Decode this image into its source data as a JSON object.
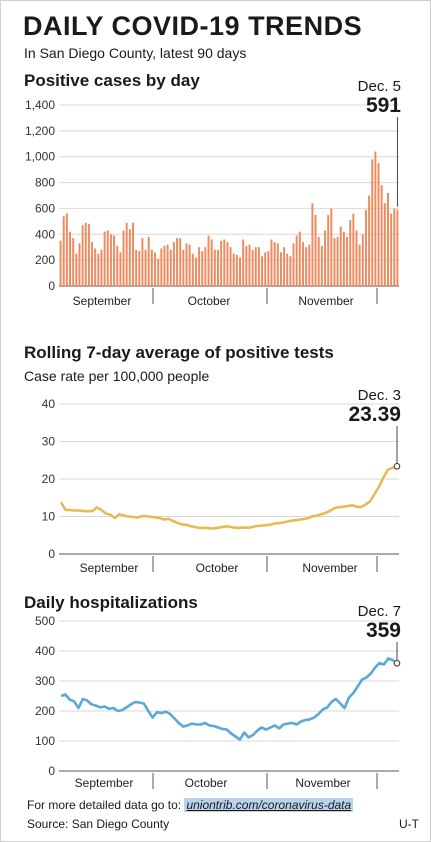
{
  "header": {
    "title": "DAILY COVID-19 TRENDS",
    "subtitle": "In San Diego County, latest 90 days"
  },
  "footer": {
    "more_text": "For more detailed data go to: ",
    "link": "uniontrib.com/coronavirus-data",
    "source": "Source: San Diego County",
    "credit": "U-T"
  },
  "chart_data": [
    {
      "type": "bar",
      "title": "Positive cases by day",
      "ylim": [
        0,
        1400
      ],
      "yticks": [
        "0",
        "200",
        "400",
        "600",
        "800",
        "1,000",
        "1,200",
        "1,400"
      ],
      "months": [
        "September",
        "October",
        "November"
      ],
      "color": "#f08a5d",
      "annotation": {
        "date": "Dec. 5",
        "value": "591"
      },
      "values": [
        350,
        540,
        560,
        420,
        370,
        250,
        330,
        470,
        490,
        480,
        340,
        290,
        250,
        280,
        420,
        430,
        400,
        390,
        310,
        260,
        430,
        490,
        440,
        490,
        280,
        270,
        370,
        280,
        380,
        280,
        260,
        210,
        290,
        310,
        320,
        280,
        340,
        370,
        370,
        280,
        330,
        320,
        250,
        220,
        300,
        270,
        300,
        390,
        360,
        280,
        280,
        350,
        360,
        340,
        300,
        250,
        240,
        220,
        360,
        310,
        320,
        280,
        300,
        300,
        230,
        260,
        270,
        360,
        340,
        330,
        260,
        300,
        250,
        230,
        330,
        390,
        420,
        340,
        300,
        320,
        640,
        550,
        380,
        310,
        430,
        550,
        600,
        370,
        380,
        460,
        420,
        380,
        510,
        560,
        430,
        320,
        400,
        590,
        700,
        980,
        1040,
        950,
        780,
        640,
        720,
        560,
        600,
        591
      ]
    },
    {
      "type": "line",
      "title": "Rolling 7-day average of positive tests",
      "ylabel": "Case rate per 100,000 people",
      "ylim": [
        0,
        40
      ],
      "yticks": [
        "0",
        "10",
        "20",
        "30",
        "40"
      ],
      "months": [
        "September",
        "October",
        "November"
      ],
      "color": "#e6bb52",
      "annotation": {
        "date": "Dec. 3",
        "value": "23.39"
      },
      "values": [
        13.8,
        11.8,
        11.7,
        11.6,
        11.6,
        11.5,
        11.4,
        11.5,
        12.4,
        11.8,
        10.8,
        10.5,
        9.6,
        10.6,
        10.3,
        10.0,
        9.9,
        9.7,
        10.1,
        10.1,
        9.9,
        9.8,
        9.6,
        9.2,
        9.4,
        8.8,
        8.3,
        7.9,
        7.8,
        7.4,
        7.2,
        6.9,
        7.0,
        6.9,
        6.8,
        7.0,
        7.2,
        7.4,
        7.2,
        7.0,
        7.0,
        7.1,
        7.0,
        7.3,
        7.5,
        7.6,
        7.7,
        7.9,
        8.2,
        8.3,
        8.5,
        8.8,
        9.0,
        9.1,
        9.3,
        9.5,
        10.0,
        10.2,
        10.6,
        10.9,
        11.5,
        12.2,
        12.5,
        12.6,
        12.8,
        13.0,
        12.6,
        12.5,
        13.2,
        14.0,
        16.0,
        18.0,
        20.5,
        22.5,
        23.0,
        23.39
      ]
    },
    {
      "type": "line",
      "title": "Daily hospitalizations",
      "ylim": [
        0,
        500
      ],
      "yticks": [
        "0",
        "100",
        "200",
        "300",
        "400",
        "500"
      ],
      "months": [
        "September",
        "October",
        "November"
      ],
      "color": "#5aa9d6",
      "annotation": {
        "date": "Dec. 7",
        "value": "359"
      },
      "values": [
        250,
        255,
        238,
        232,
        210,
        240,
        235,
        222,
        218,
        212,
        215,
        207,
        210,
        200,
        203,
        212,
        222,
        230,
        228,
        225,
        200,
        178,
        196,
        193,
        198,
        190,
        175,
        160,
        148,
        152,
        158,
        155,
        155,
        160,
        152,
        150,
        145,
        140,
        138,
        125,
        115,
        105,
        128,
        112,
        120,
        135,
        145,
        138,
        145,
        152,
        142,
        155,
        158,
        160,
        155,
        165,
        170,
        172,
        178,
        190,
        205,
        212,
        230,
        240,
        225,
        210,
        245,
        260,
        282,
        305,
        312,
        325,
        345,
        360,
        355,
        375,
        370,
        359
      ]
    }
  ]
}
